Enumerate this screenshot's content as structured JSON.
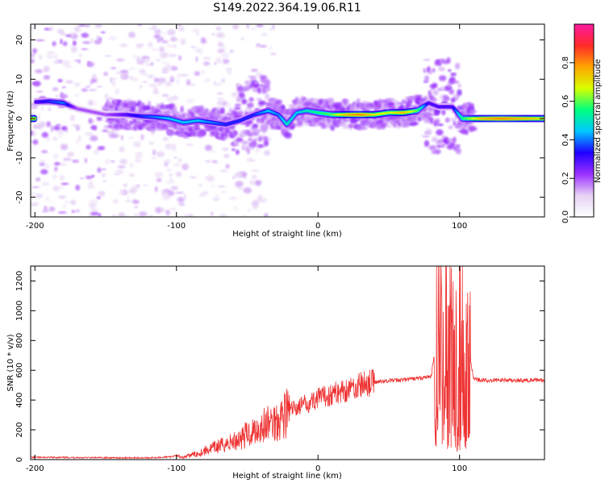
{
  "title": "S149.2022.364.19.06.R11",
  "chart_data": [
    {
      "type": "heatmap",
      "xlabel": "Height of straight line (km)",
      "ylabel": "Frequency (Hz)",
      "xlim": [
        -203,
        160
      ],
      "ylim": [
        -25,
        24
      ],
      "xticks": [
        -200,
        -100,
        0,
        100
      ],
      "yticks": [
        -20,
        -10,
        0,
        10,
        20
      ],
      "colorbar": {
        "label": "Normalized spectral amplitude",
        "range": [
          0,
          1
        ],
        "ticks": [
          "0.0",
          "0.2",
          "0.4",
          "0.6",
          "0.8"
        ],
        "tick_values": [
          0,
          0.2,
          0.4,
          0.6,
          0.8
        ],
        "stops": [
          "#ffffff",
          "#e6d2f5",
          "#9b30ff",
          "#1f00ff",
          "#00c8ff",
          "#00ff7f",
          "#d8ff00",
          "#ffa500",
          "#ff2a2a",
          "#ff1aa0"
        ]
      },
      "ridge": [
        {
          "x": -200,
          "y": 4.2,
          "a": 0.3
        },
        {
          "x": -190,
          "y": 4.4,
          "a": 0.35
        },
        {
          "x": -180,
          "y": 4.0,
          "a": 0.4
        },
        {
          "x": -170,
          "y": 2.5,
          "a": 0.2
        },
        {
          "x": -150,
          "y": 1.0,
          "a": 0.2
        },
        {
          "x": -135,
          "y": 1.0,
          "a": 0.3
        },
        {
          "x": -125,
          "y": 0.6,
          "a": 0.35
        },
        {
          "x": -115,
          "y": 0.4,
          "a": 0.4
        },
        {
          "x": -105,
          "y": 0.0,
          "a": 0.45
        },
        {
          "x": -95,
          "y": -1.0,
          "a": 0.45
        },
        {
          "x": -85,
          "y": -0.5,
          "a": 0.45
        },
        {
          "x": -75,
          "y": -1.0,
          "a": 0.4
        },
        {
          "x": -65,
          "y": -1.5,
          "a": 0.35
        },
        {
          "x": -55,
          "y": -0.5,
          "a": 0.35
        },
        {
          "x": -45,
          "y": 1.0,
          "a": 0.35
        },
        {
          "x": -35,
          "y": 2.0,
          "a": 0.45
        },
        {
          "x": -28,
          "y": 1.0,
          "a": 0.4
        },
        {
          "x": -22,
          "y": -1.5,
          "a": 0.5
        },
        {
          "x": -15,
          "y": 1.5,
          "a": 0.45
        },
        {
          "x": -8,
          "y": 2.0,
          "a": 0.5
        },
        {
          "x": 0,
          "y": 1.5,
          "a": 0.55
        },
        {
          "x": 10,
          "y": 1.0,
          "a": 0.6
        },
        {
          "x": 20,
          "y": 1.0,
          "a": 0.75
        },
        {
          "x": 30,
          "y": 1.0,
          "a": 0.8
        },
        {
          "x": 40,
          "y": 1.0,
          "a": 0.7
        },
        {
          "x": 50,
          "y": 1.5,
          "a": 0.65
        },
        {
          "x": 60,
          "y": 1.5,
          "a": 0.75
        },
        {
          "x": 70,
          "y": 2.0,
          "a": 0.6
        },
        {
          "x": 78,
          "y": 4.0,
          "a": 0.3
        },
        {
          "x": 85,
          "y": 3.0,
          "a": 0.3
        },
        {
          "x": 95,
          "y": 3.0,
          "a": 0.3
        },
        {
          "x": 102,
          "y": 0.0,
          "a": 0.55
        },
        {
          "x": 115,
          "y": 0.0,
          "a": 0.75
        },
        {
          "x": 130,
          "y": 0.0,
          "a": 0.8
        },
        {
          "x": 145,
          "y": 0.0,
          "a": 0.75
        },
        {
          "x": 160,
          "y": 0.0,
          "a": 0.7
        }
      ]
    },
    {
      "type": "line",
      "xlabel": "Height of straight line (km)",
      "ylabel": "SNR (10 * v/v)",
      "xlim": [
        -203,
        160
      ],
      "ylim": [
        0,
        1300
      ],
      "xticks": [
        -200,
        -100,
        0,
        100
      ],
      "yticks": [
        0,
        200,
        400,
        600,
        800,
        1000,
        1200
      ],
      "color": "#ee3333",
      "series": [
        {
          "x": [
            -203,
            -180,
            -160,
            -140,
            -120,
            -105,
            -100,
            -95,
            -90,
            -85,
            -80,
            -70,
            -60,
            -50,
            -40,
            -30,
            -25,
            -20,
            -10,
            0,
            10,
            20,
            30,
            40,
            50,
            60,
            70,
            75,
            80,
            82,
            84,
            86,
            88,
            90,
            92,
            94,
            96,
            98,
            100,
            102,
            104,
            106,
            108,
            110,
            120,
            130,
            140,
            150,
            160
          ],
          "y": [
            15,
            14,
            13,
            12,
            12,
            18,
            25,
            15,
            30,
            40,
            60,
            90,
            120,
            170,
            220,
            260,
            300,
            330,
            370,
            410,
            440,
            470,
            500,
            520,
            530,
            535,
            545,
            550,
            560,
            700,
            1050,
            1300,
            900,
            1180,
            700,
            1050,
            1150,
            650,
            1050,
            950,
            700,
            600,
            650,
            540,
            530,
            535,
            530,
            535,
            530
          ]
        }
      ]
    }
  ]
}
